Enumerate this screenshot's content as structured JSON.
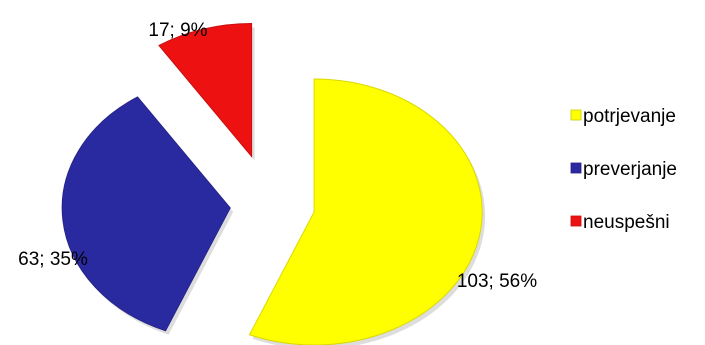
{
  "chart_data": {
    "type": "pie",
    "exploded": true,
    "legend_position": "right",
    "slices": [
      {
        "name": "potrjevanje",
        "value": 103,
        "percent": 56,
        "label": "103; 56%",
        "color": "#ffff00"
      },
      {
        "name": "preverjanje",
        "value": 63,
        "percent": 35,
        "label": "63; 35%",
        "color": "#2a2aa0"
      },
      {
        "name": "neuspešni",
        "value": 17,
        "percent": 9,
        "label": "17; 9%",
        "color": "#ee1111"
      }
    ],
    "legend": [
      "potrjevanje",
      "preverjanje",
      "neuspešni"
    ]
  }
}
